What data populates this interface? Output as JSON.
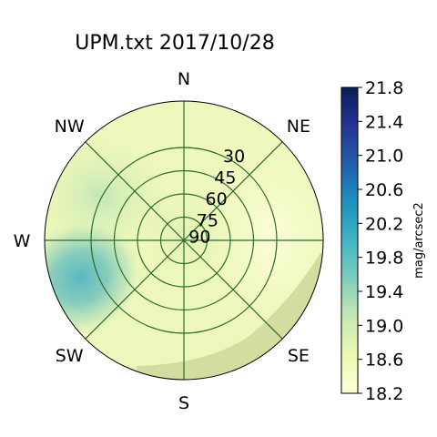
{
  "chart_data": {
    "type": "heatmap",
    "projection": "polar",
    "title": "UPM.txt 2017/10/28",
    "direction_labels": [
      "N",
      "NE",
      "E",
      "SE",
      "S",
      "SW",
      "W",
      "NW"
    ],
    "radial_ticks": [
      "90",
      "75",
      "60",
      "45",
      "30"
    ],
    "altitude_rings_deg": [
      75,
      60,
      45,
      30
    ],
    "altitude_range_deg": [
      0,
      90
    ],
    "grid": true,
    "colorbar": {
      "label": "mag/arcsec2",
      "min": 18.2,
      "max": 21.8,
      "ticks": [
        "21.8",
        "21.4",
        "21.0",
        "20.6",
        "20.2",
        "19.8",
        "19.4",
        "19.0",
        "18.6",
        "18.2"
      ],
      "colormap": "YlGnBu",
      "placement": "right"
    },
    "regions": [
      {
        "area": "zenith",
        "value": 18.8
      },
      {
        "area": "N",
        "value": 18.7
      },
      {
        "area": "NE",
        "value": 18.6
      },
      {
        "area": "E",
        "value": 18.5
      },
      {
        "area": "SE",
        "value": 18.4
      },
      {
        "area": "S",
        "value": 18.5
      },
      {
        "area": "SW",
        "value": 19.6
      },
      {
        "area": "W",
        "value": 19.5
      },
      {
        "area": "NW",
        "value": 18.9
      },
      {
        "area": "SE-S horizon",
        "value": 18.2
      }
    ],
    "colors": {
      "grid": "#2e6b2e",
      "low": "#ffffd9",
      "mid": "#7fcdbb",
      "high": "#081d58"
    }
  }
}
